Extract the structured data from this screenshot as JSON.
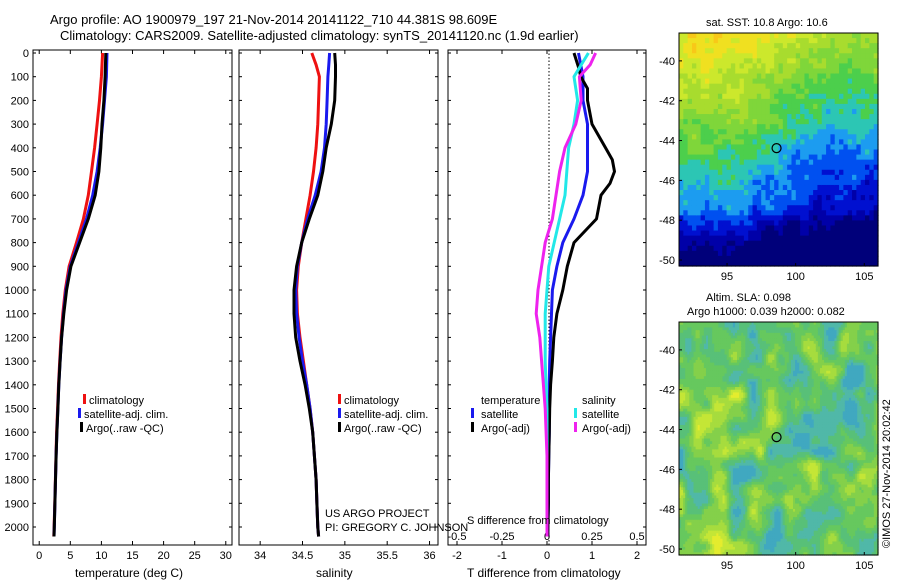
{
  "header": {
    "line1": "Argo profile: AO 1900979_197 21-Nov-2014 20141122_710 44.381S 98.609E",
    "line2": "Climatology: CARS2009. Satellite-adjusted climatology: synTS_20141120.nc (1.9d earlier)"
  },
  "colors": {
    "climatology": "#ee1111",
    "satellite": "#1a1aee",
    "argo": "#000000",
    "cyan": "#22e8e8",
    "magenta": "#ee22ee"
  },
  "chart_data": [
    {
      "type": "line",
      "name": "temperature-profile",
      "xlabel": "temperature (deg C)",
      "xlim": [
        -1,
        31
      ],
      "ylim": [
        2060,
        0
      ],
      "xticks": [
        "0",
        "5",
        "10",
        "15",
        "20",
        "25",
        "30"
      ],
      "xtick_values": [
        0,
        5,
        10,
        15,
        20,
        25,
        30
      ],
      "yticks": [
        "0",
        "100",
        "200",
        "300",
        "400",
        "500",
        "600",
        "700",
        "800",
        "900",
        "1000",
        "1100",
        "1200",
        "1300",
        "1400",
        "1500",
        "1600",
        "1700",
        "1800",
        "1900",
        "2000"
      ],
      "legend": [
        "climatology",
        "satellite-adj. clim.",
        "Argo(..raw -QC)"
      ],
      "series": [
        {
          "name": "climatology",
          "color": "#ee1111",
          "depth": [
            0,
            100,
            200,
            300,
            400,
            500,
            600,
            700,
            800,
            900,
            1000,
            1100,
            1200,
            1300,
            1400,
            1500,
            1600,
            1700,
            1800,
            1900,
            2000,
            2040
          ],
          "values": [
            10.2,
            10.0,
            9.7,
            9.3,
            8.9,
            8.4,
            7.9,
            7.1,
            6.0,
            4.8,
            4.2,
            3.8,
            3.5,
            3.3,
            3.1,
            2.95,
            2.8,
            2.7,
            2.6,
            2.5,
            2.4,
            2.35
          ]
        },
        {
          "name": "satellite-adj. clim.",
          "color": "#1a1aee",
          "depth": [
            0,
            100,
            200,
            300,
            400,
            500,
            600,
            700,
            800,
            900,
            1000,
            1100,
            1200,
            1300,
            1400,
            1500,
            1600,
            1700,
            1800,
            1900,
            2000,
            2040
          ],
          "values": [
            10.9,
            10.8,
            10.5,
            10.2,
            9.8,
            9.3,
            8.6,
            7.6,
            6.3,
            5.0,
            4.3,
            3.9,
            3.6,
            3.35,
            3.15,
            3.0,
            2.85,
            2.72,
            2.62,
            2.52,
            2.42,
            2.37
          ]
        },
        {
          "name": "Argo(..raw -QC)",
          "color": "#000000",
          "depth": [
            0,
            100,
            200,
            300,
            400,
            500,
            600,
            700,
            800,
            900,
            1000,
            1100,
            1200,
            1300,
            1400,
            1500,
            1600,
            1700,
            1800,
            1900,
            2000,
            2040
          ],
          "values": [
            10.7,
            10.6,
            10.4,
            10.1,
            9.9,
            9.6,
            9.0,
            7.9,
            6.5,
            5.1,
            4.4,
            3.95,
            3.6,
            3.35,
            3.15,
            3.0,
            2.85,
            2.72,
            2.62,
            2.52,
            2.42,
            2.37
          ]
        }
      ]
    },
    {
      "type": "line",
      "name": "salinity-profile",
      "xlabel": "salinity",
      "xlim": [
        33.75,
        36.1
      ],
      "ylim": [
        2060,
        0
      ],
      "xticks": [
        "34",
        "34.5",
        "35",
        "35.5",
        "36"
      ],
      "xtick_values": [
        34,
        34.5,
        35,
        35.5,
        36
      ],
      "legend": [
        "climatology",
        "satellite-adj. clim.",
        "Argo(..raw -QC)"
      ],
      "annotation": [
        "US ARGO PROJECT",
        "PI: GREGORY C. JOHNSON"
      ],
      "series": [
        {
          "name": "climatology",
          "color": "#ee1111",
          "depth": [
            0,
            50,
            100,
            200,
            300,
            400,
            500,
            600,
            700,
            800,
            900,
            1000,
            1100,
            1200,
            1300,
            1400,
            1500,
            1600,
            1700,
            1800,
            1900,
            2000,
            2040
          ],
          "values": [
            34.61,
            34.66,
            34.7,
            34.69,
            34.68,
            34.66,
            34.63,
            34.59,
            34.54,
            34.49,
            34.45,
            34.43,
            34.44,
            34.47,
            34.51,
            34.55,
            34.59,
            34.62,
            34.64,
            34.66,
            34.67,
            34.68,
            34.69
          ]
        },
        {
          "name": "satellite-adj. clim.",
          "color": "#1a1aee",
          "depth": [
            0,
            50,
            100,
            200,
            300,
            400,
            500,
            600,
            700,
            800,
            900,
            1000,
            1100,
            1200,
            1300,
            1400,
            1500,
            1600,
            1700,
            1800,
            1900,
            2000,
            2040
          ],
          "values": [
            34.82,
            34.81,
            34.8,
            34.79,
            34.78,
            34.76,
            34.72,
            34.65,
            34.56,
            34.49,
            34.44,
            34.42,
            34.43,
            34.46,
            34.5,
            34.55,
            34.59,
            34.62,
            34.64,
            34.66,
            34.67,
            34.68,
            34.69
          ]
        },
        {
          "name": "Argo(..raw -QC)",
          "color": "#000000",
          "depth": [
            0,
            50,
            100,
            200,
            300,
            400,
            500,
            600,
            700,
            800,
            900,
            1000,
            1100,
            1200,
            1300,
            1400,
            1500,
            1600,
            1700,
            1800,
            1900,
            2000,
            2040
          ],
          "values": [
            34.88,
            34.89,
            34.89,
            34.88,
            34.84,
            34.78,
            34.74,
            34.68,
            34.58,
            34.49,
            34.43,
            34.4,
            34.4,
            34.42,
            34.47,
            34.53,
            34.58,
            34.62,
            34.64,
            34.66,
            34.67,
            34.68,
            34.69
          ]
        }
      ]
    },
    {
      "type": "line",
      "name": "difference-profile",
      "xlabel": "T difference from climatology",
      "xlabel_top": "S difference from climatology",
      "xlim": [
        -2.2,
        2.2
      ],
      "ylim": [
        2060,
        0
      ],
      "xticks": [
        "-2",
        "-1",
        "0",
        "1",
        "2"
      ],
      "xtick_values": [
        -2,
        -1,
        0,
        1,
        2
      ],
      "sticks": [
        "-0.5",
        "-0.25",
        "0",
        "0.25",
        "0.5"
      ],
      "stick_values": [
        -0.5,
        -0.25,
        0,
        0.25,
        0.5
      ],
      "s_scale": 4,
      "legend_headers": [
        "temperature",
        "salinity"
      ],
      "legend_temperature": [
        "satellite",
        "Argo(-adj)"
      ],
      "legend_salinity": [
        "satellite",
        "Argo(-adj)"
      ],
      "series": [
        {
          "name": "temperature satellite",
          "color": "#1a1aee",
          "depth": [
            0,
            100,
            200,
            300,
            400,
            500,
            600,
            700,
            800,
            900,
            1000,
            1100,
            1200,
            1300,
            1400,
            1500,
            1600,
            1700,
            1800,
            1900,
            2000,
            2040
          ],
          "values": [
            0.7,
            0.8,
            0.8,
            0.9,
            0.9,
            0.9,
            0.8,
            0.6,
            0.35,
            0.22,
            0.12,
            0.1,
            0.08,
            0.06,
            0.05,
            0.05,
            0.05,
            0.04,
            0.03,
            0.03,
            0.02,
            0.02
          ]
        },
        {
          "name": "temperature Argo",
          "color": "#000000",
          "depth": [
            0,
            60,
            100,
            150,
            200,
            300,
            400,
            450,
            500,
            550,
            600,
            700,
            800,
            900,
            1000,
            1100,
            1200,
            1300,
            1400,
            1500,
            1600,
            1700,
            1800,
            1900,
            2000,
            2040
          ],
          "values": [
            0.6,
            0.7,
            0.75,
            0.9,
            0.9,
            1.0,
            1.3,
            1.45,
            1.5,
            1.4,
            1.2,
            1.1,
            0.6,
            0.45,
            0.35,
            0.22,
            0.15,
            0.12,
            0.08,
            0.06,
            0.05,
            0.04,
            0.03,
            0.03,
            0.02,
            0.02
          ]
        },
        {
          "name": "salinity satellite",
          "color": "#22e8e8",
          "depth": [
            0,
            100,
            200,
            300,
            400,
            500,
            600,
            700,
            800,
            900,
            1000,
            1100,
            1200,
            1300,
            1400,
            1500,
            1600,
            1700,
            1800,
            1900,
            2000,
            2040
          ],
          "values": [
            0.23,
            0.15,
            0.17,
            0.15,
            0.12,
            0.11,
            0.1,
            0.07,
            0.04,
            0.01,
            0.0,
            -0.01,
            -0.01,
            -0.01,
            -0.005,
            0.0,
            0.0,
            0.0,
            0.0,
            0.0,
            0.0,
            0.0
          ]
        },
        {
          "name": "salinity Argo",
          "color": "#ee22ee",
          "depth": [
            0,
            50,
            100,
            200,
            300,
            400,
            500,
            600,
            700,
            800,
            900,
            1000,
            1100,
            1200,
            1300,
            1400,
            1500,
            1600,
            1700,
            1800,
            1900,
            2000,
            2040
          ],
          "values": [
            0.27,
            0.24,
            0.18,
            0.19,
            0.16,
            0.1,
            0.07,
            0.05,
            0.03,
            -0.01,
            -0.03,
            -0.05,
            -0.06,
            -0.04,
            -0.03,
            -0.02,
            -0.01,
            -0.005,
            0.0,
            0.0,
            0.0,
            0.0,
            0.0
          ]
        }
      ]
    },
    {
      "type": "heatmap",
      "name": "sst-map",
      "title": "sat. SST: 10.8 Argo: 10.6",
      "xlim": [
        91.5,
        106
      ],
      "ylim": [
        -50.3,
        -38.6
      ],
      "xticks": [
        "95",
        "100",
        "105"
      ],
      "xtick_values": [
        95,
        100,
        105
      ],
      "yticks": [
        "-40",
        "-42",
        "-44",
        "-46",
        "-48",
        "-50"
      ],
      "ytick_values": [
        -40,
        -42,
        -44,
        -46,
        -48,
        -50
      ],
      "marker": {
        "lon": 98.609,
        "lat": -44.381
      }
    },
    {
      "type": "heatmap",
      "name": "sla-map",
      "title": "Altim. SLA: 0.098",
      "subtitle": "Argo h1000: 0.039 h2000: 0.082",
      "xlim": [
        91.5,
        106
      ],
      "ylim": [
        -50.3,
        -38.6
      ],
      "xticks": [
        "95",
        "100",
        "105"
      ],
      "xtick_values": [
        95,
        100,
        105
      ],
      "yticks": [
        "-40",
        "-42",
        "-44",
        "-46",
        "-48",
        "-50"
      ],
      "ytick_values": [
        -40,
        -42,
        -44,
        -46,
        -48,
        -50
      ],
      "marker": {
        "lon": 98.609,
        "lat": -44.381
      }
    }
  ],
  "credit": "©IMOS 27-Nov-2014 20:02:42"
}
